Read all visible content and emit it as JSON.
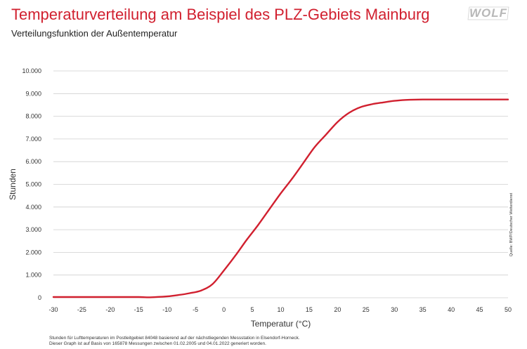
{
  "header": {
    "title": "Temperaturverteilung am Beispiel des PLZ-Gebiets Mainburg",
    "subtitle": "Verteilungsfunktion der Außentemperatur",
    "logo_text": "WOLF"
  },
  "colors": {
    "accent": "#d1202f",
    "grid": "#cfcfcf",
    "text": "#333333",
    "logo": "#b8b8b8"
  },
  "chart_data": {
    "type": "line",
    "xlabel": "Temperatur (°C)",
    "ylabel": "Stunden",
    "xlim": [
      -30,
      50
    ],
    "ylim": [
      0,
      10000
    ],
    "grid": true,
    "x_ticks": [
      -30,
      -25,
      -20,
      -15,
      -10,
      -5,
      0,
      5,
      10,
      15,
      20,
      25,
      30,
      35,
      40,
      45,
      50
    ],
    "x_tick_labels": [
      "-30",
      "-25",
      "-20",
      "-15",
      "-10",
      "-5",
      "0",
      "5",
      "10",
      "15",
      "20",
      "25",
      "30",
      "35",
      "40",
      "45",
      "50"
    ],
    "y_ticks": [
      0,
      1000,
      2000,
      3000,
      4000,
      5000,
      6000,
      7000,
      8000,
      9000,
      10000
    ],
    "y_tick_labels": [
      "0",
      "1.000",
      "2.000",
      "3.000",
      "4.000",
      "5.000",
      "6.000",
      "7.000",
      "8.000",
      "9.000",
      "10.000"
    ],
    "series": [
      {
        "name": "Stunden",
        "color": "#d1202f",
        "x": [
          -30,
          -20,
          -15,
          -13,
          -10,
          -8,
          -6,
          -4,
          -2,
          0,
          2,
          4,
          6,
          8,
          10,
          12,
          14,
          16,
          18,
          20,
          22,
          24,
          26,
          28,
          30,
          32,
          35,
          40,
          45,
          50
        ],
        "y": [
          30,
          30,
          30,
          20,
          60,
          120,
          200,
          320,
          600,
          1200,
          1850,
          2550,
          3200,
          3900,
          4600,
          5250,
          5950,
          6650,
          7200,
          7750,
          8150,
          8400,
          8530,
          8610,
          8680,
          8720,
          8740,
          8740,
          8740,
          8740
        ]
      }
    ]
  },
  "source_note": "Quelle: BWP/Deutscher Wetterdienst",
  "footnote": {
    "line1": "Stunden für Lufttemperaturen im Postleitgebiet 84048 basierend auf der nächstliegenden Messstation in Elsendorf-Horneck.",
    "line2": "Dieser Graph ist auf Basis von 165878 Messungen zwischen 01.02.2005 und 04.01.2022 generiert worden."
  }
}
